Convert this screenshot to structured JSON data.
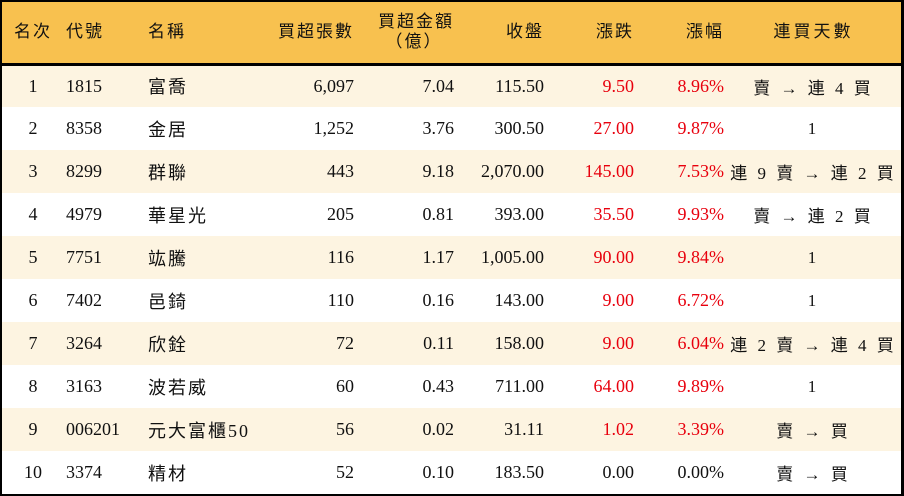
{
  "colors": {
    "header_bg": "#f8c14f",
    "row_odd": "#fdf4e1",
    "row_even": "#ffffff",
    "up": "#e8000d",
    "border": "#000000"
  },
  "headers": {
    "rank": "名次",
    "code": "代號",
    "name": "名稱",
    "lots": "買超張數",
    "amount_line1": "買超金額",
    "amount_line2": "（億）",
    "close": "收盤",
    "change": "漲跌",
    "pct": "漲幅",
    "streak": "連買天數"
  },
  "rows": [
    {
      "rank": "1",
      "code": "1815",
      "name": "富喬",
      "lots": "6,097",
      "amount": "7.04",
      "close": "115.50",
      "change": "9.50",
      "pct": "8.96%",
      "streak": "賣 → 連 4 買",
      "up": true
    },
    {
      "rank": "2",
      "code": "8358",
      "name": "金居",
      "lots": "1,252",
      "amount": "3.76",
      "close": "300.50",
      "change": "27.00",
      "pct": "9.87%",
      "streak": "1",
      "up": true
    },
    {
      "rank": "3",
      "code": "8299",
      "name": "群聯",
      "lots": "443",
      "amount": "9.18",
      "close": "2,070.00",
      "change": "145.00",
      "pct": "7.53%",
      "streak": "連 9 賣 → 連 2 買",
      "up": true
    },
    {
      "rank": "4",
      "code": "4979",
      "name": "華星光",
      "lots": "205",
      "amount": "0.81",
      "close": "393.00",
      "change": "35.50",
      "pct": "9.93%",
      "streak": "賣 → 連 2 買",
      "up": true
    },
    {
      "rank": "5",
      "code": "7751",
      "name": "竑騰",
      "lots": "116",
      "amount": "1.17",
      "close": "1,005.00",
      "change": "90.00",
      "pct": "9.84%",
      "streak": "1",
      "up": true
    },
    {
      "rank": "6",
      "code": "7402",
      "name": "邑錡",
      "lots": "110",
      "amount": "0.16",
      "close": "143.00",
      "change": "9.00",
      "pct": "6.72%",
      "streak": "1",
      "up": true
    },
    {
      "rank": "7",
      "code": "3264",
      "name": "欣銓",
      "lots": "72",
      "amount": "0.11",
      "close": "158.00",
      "change": "9.00",
      "pct": "6.04%",
      "streak": "連 2 賣 → 連 4 買",
      "up": true
    },
    {
      "rank": "8",
      "code": "3163",
      "name": "波若威",
      "lots": "60",
      "amount": "0.43",
      "close": "711.00",
      "change": "64.00",
      "pct": "9.89%",
      "streak": "1",
      "up": true
    },
    {
      "rank": "9",
      "code": "006201",
      "name": "元大富櫃50",
      "lots": "56",
      "amount": "0.02",
      "close": "31.11",
      "change": "1.02",
      "pct": "3.39%",
      "streak": "賣 → 買",
      "up": true
    },
    {
      "rank": "10",
      "code": "3374",
      "name": "精材",
      "lots": "52",
      "amount": "0.10",
      "close": "183.50",
      "change": "0.00",
      "pct": "0.00%",
      "streak": "賣 → 買",
      "up": false
    }
  ]
}
